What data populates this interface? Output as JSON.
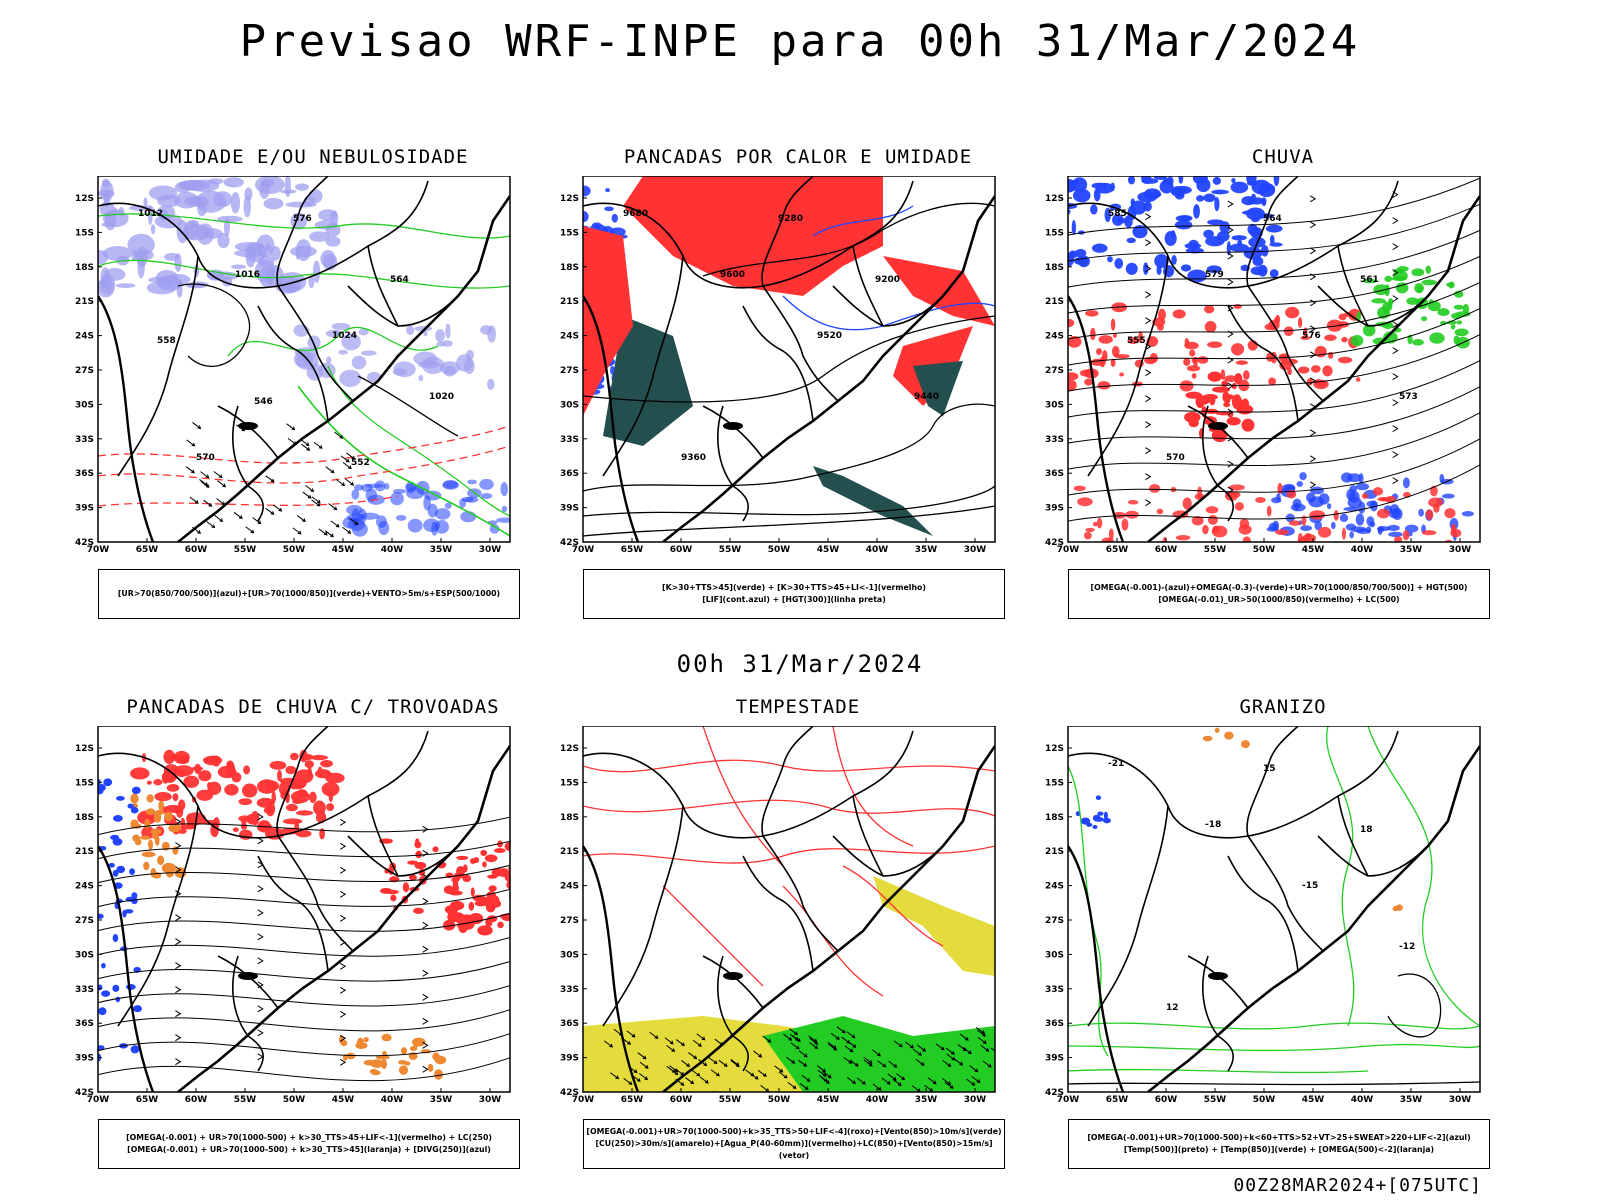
{
  "header": {
    "title": "Previsao WRF-INPE  para 00h 31/Mar/2024"
  },
  "middle_date": "00h 31/Mar/2024",
  "footer_stamp": "00Z28MAR2024+[075UTC]",
  "axes": {
    "lat_labels": [
      "12S",
      "15S",
      "18S",
      "21S",
      "24S",
      "27S",
      "30S",
      "33S",
      "36S",
      "39S",
      "42S"
    ],
    "lon_labels": [
      "70W",
      "65W",
      "60W",
      "55W",
      "50W",
      "45W",
      "40W",
      "35W",
      "30W"
    ]
  },
  "colors": {
    "green": "#22cc22",
    "red": "#ff3333",
    "blue": "#2244ff",
    "lavender": "#9f9ff0",
    "darkteal": "#244f4f",
    "orange": "#ee8833",
    "yellow": "#e4dc3c",
    "purple": "#9933cc"
  },
  "panels": [
    {
      "title": "UMIDADE E/OU NEBULOSIDADE",
      "legend": [
        "[UR>70(850/700/500)](azul)+[UR>70(1000/850)](verde)+VENTO>5m/s+ESP(500/1000)"
      ],
      "contour_labels": [
        "1012",
        "1016",
        "1024",
        "1020",
        "570",
        "576",
        "564",
        "558",
        "546",
        "552"
      ]
    },
    {
      "title": "PANCADAS POR CALOR E UMIDADE",
      "legend": [
        "[K>30+TTS>45](verde) + [K>30+TTS>45+LI<-1](vermelho)",
        "[LIF](cont.azul) + [HGT(300)](linha preta)"
      ],
      "contour_labels": [
        "9680",
        "9600",
        "9520",
        "9440",
        "9360",
        "9280",
        "9200"
      ]
    },
    {
      "title": "CHUVA",
      "legend": [
        "[OMEGA(-0.001)-(azul)+OMEGA(-0.3)-(verde)+UR>70(1000/850/700/500)] + HGT(500)",
        "[OMEGA(-0.01)_UR>50(1000/850)(vermelho) + LC(500)"
      ],
      "contour_labels": [
        "585",
        "579",
        "576",
        "573",
        "570",
        "564",
        "561",
        "555"
      ]
    },
    {
      "title": "PANCADAS DE CHUVA C/ TROVOADAS",
      "legend": [
        "[OMEGA(-0.001) + UR>70(1000-500) + k>30_TTS>45+LIF<-1](vermelho) + LC(250)",
        "[OMEGA(-0.001) + UR>70(1000-500) + k>30_TTS>45](laranja) + [DIVG(250)](azul)"
      ],
      "contour_labels": []
    },
    {
      "title": "TEMPESTADE",
      "legend": [
        "[OMEGA(-0.001)+UR>70(1000-500)+k>35_TTS>50+LIF<-4](roxo)+[Vento(850)>10m/s](verde)",
        "[CU(250)>30m/s](amarelo)+[Agua_P(40-60mm)](vermelho)+LC(850)+[Vento(850)>15m/s](vetor)"
      ],
      "contour_labels": []
    },
    {
      "title": "GRANIZO",
      "legend": [
        "[OMEGA(-0.001)+UR>70(1000-500)+k<60+TTS>52+VT>25+SWEAT>220+LIF<-2](azul)",
        "[Temp(500)](preto) + [Temp(850)](verde) + [OMEGA(500)<-2](laranja)"
      ],
      "contour_labels": [
        "-21",
        "-18",
        "-15",
        "-12",
        "12",
        "15",
        "18"
      ]
    }
  ]
}
